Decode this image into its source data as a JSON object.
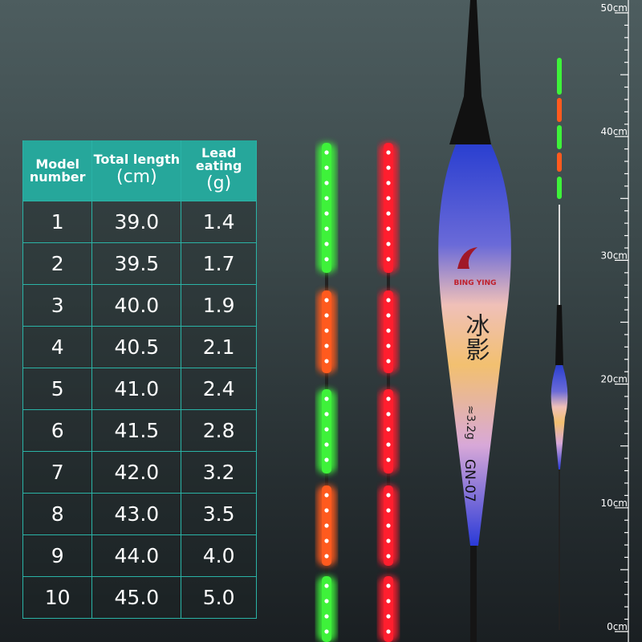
{
  "table": {
    "headers": [
      {
        "label": "Model number",
        "unit": ""
      },
      {
        "label": "Total length",
        "unit": "(cm)"
      },
      {
        "label": "Lead eating",
        "unit": "(g)"
      }
    ],
    "rows": [
      [
        "1",
        "39.0",
        "1.4"
      ],
      [
        "2",
        "39.5",
        "1.7"
      ],
      [
        "3",
        "40.0",
        "1.9"
      ],
      [
        "4",
        "40.5",
        "2.1"
      ],
      [
        "5",
        "41.0",
        "2.4"
      ],
      [
        "6",
        "41.5",
        "2.8"
      ],
      [
        "7",
        "42.0",
        "3.2"
      ],
      [
        "8",
        "43.0",
        "3.5"
      ],
      [
        "9",
        "44.0",
        "4.0"
      ],
      [
        "10",
        "45.0",
        "5.0"
      ]
    ]
  },
  "float": {
    "brand": "BING YING",
    "chinese_name": "冰影",
    "weight": "≈3.2g",
    "model": "GN-07"
  },
  "ruler": {
    "labels": [
      "50cm",
      "40cm",
      "30cm",
      "20cm",
      "10cm",
      "0cm"
    ],
    "max_cm": 50
  },
  "colors": {
    "header": "#26a79b",
    "led_green": "#3ef23a",
    "led_orange": "#ff5a1e",
    "led_red": "#ff1e2e"
  }
}
